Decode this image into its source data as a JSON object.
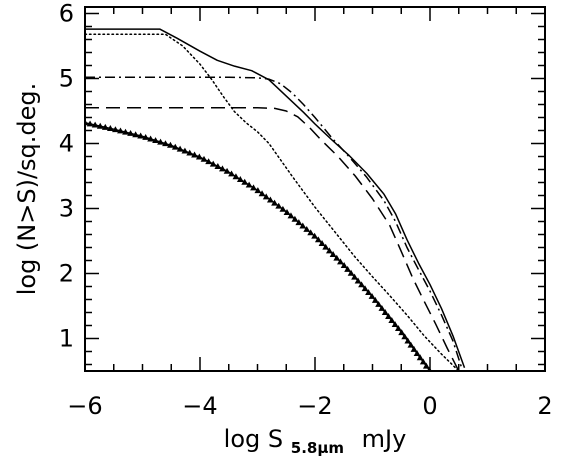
{
  "chart_data": {
    "type": "line",
    "xlabel": {
      "main": "log S",
      "subscript": "5.8μm",
      "unit": "mJy"
    },
    "ylabel": "log (N>S)/sq.deg.",
    "xlim": [
      -6.0,
      2.0
    ],
    "ylim": [
      0.5,
      6.1
    ],
    "xticks": [
      -6,
      -4,
      -2,
      0,
      2
    ],
    "xtick_labels": [
      "−6",
      "−4",
      "−2",
      "0",
      "2"
    ],
    "yticks": [
      1,
      2,
      3,
      4,
      5,
      6
    ],
    "ytick_labels": [
      "1",
      "2",
      "3",
      "4",
      "5",
      "6"
    ],
    "grid": false,
    "legend": "none",
    "series": [
      {
        "style": "solid",
        "color": "#000000",
        "x": [
          -6.0,
          -5.0,
          -4.7,
          -4.4,
          -4.0,
          -3.7,
          -3.4,
          -3.1,
          -2.8,
          -2.5,
          -2.2,
          -2.0,
          -1.7,
          -1.4,
          -1.1,
          -0.8,
          -0.6,
          -0.4,
          -0.2,
          0.0,
          0.2,
          0.4,
          0.6
        ],
        "y": [
          5.76,
          5.76,
          5.76,
          5.62,
          5.42,
          5.28,
          5.19,
          5.12,
          4.98,
          4.73,
          4.48,
          4.3,
          4.05,
          3.81,
          3.54,
          3.22,
          2.92,
          2.52,
          2.16,
          1.83,
          1.46,
          1.04,
          0.55
        ]
      },
      {
        "style": "dotted",
        "color": "#000000",
        "x": [
          -6.0,
          -5.0,
          -4.6,
          -4.3,
          -4.0,
          -3.8,
          -3.6,
          -3.4,
          -3.2,
          -3.0,
          -2.8,
          -2.6,
          -2.4,
          -2.2,
          -2.0,
          -1.8,
          -1.6,
          -1.3,
          -1.0,
          -0.7,
          -0.4,
          -0.1,
          0.2,
          0.5
        ],
        "y": [
          5.68,
          5.68,
          5.68,
          5.5,
          5.22,
          4.99,
          4.73,
          4.49,
          4.32,
          4.18,
          4.0,
          3.75,
          3.5,
          3.26,
          3.02,
          2.8,
          2.58,
          2.25,
          1.95,
          1.66,
          1.36,
          1.04,
          0.76,
          0.5
        ]
      },
      {
        "style": "dash-dot",
        "color": "#000000",
        "x": [
          -6.0,
          -4.0,
          -3.5,
          -3.0,
          -2.8,
          -2.6,
          -2.4,
          -2.2,
          -2.0,
          -1.7,
          -1.4,
          -1.1,
          -0.8,
          -0.6,
          -0.4,
          -0.2,
          0.0,
          0.2,
          0.4,
          0.55
        ],
        "y": [
          5.02,
          5.02,
          5.02,
          5.01,
          4.99,
          4.92,
          4.78,
          4.6,
          4.4,
          4.08,
          3.79,
          3.48,
          3.12,
          2.8,
          2.4,
          2.06,
          1.73,
          1.36,
          0.96,
          0.55
        ]
      },
      {
        "style": "dashed",
        "color": "#000000",
        "x": [
          -6.0,
          -4.0,
          -3.0,
          -2.7,
          -2.5,
          -2.3,
          -2.1,
          -1.9,
          -1.6,
          -1.3,
          -1.0,
          -0.7,
          -0.5,
          -0.3,
          -0.1,
          0.1,
          0.3,
          0.5
        ],
        "y": [
          4.55,
          4.55,
          4.55,
          4.54,
          4.5,
          4.41,
          4.25,
          4.06,
          3.8,
          3.5,
          3.15,
          2.74,
          2.34,
          1.93,
          1.57,
          1.22,
          0.85,
          0.5
        ]
      },
      {
        "style": "solid-with-triangles",
        "color": "#000000",
        "x": [
          -6.0,
          -5.5,
          -5.0,
          -4.5,
          -4.0,
          -3.5,
          -3.0,
          -2.5,
          -2.0,
          -1.5,
          -1.0,
          -0.5,
          -0.2,
          0.0
        ],
        "y": [
          4.32,
          4.22,
          4.11,
          3.97,
          3.79,
          3.56,
          3.28,
          2.95,
          2.57,
          2.13,
          1.64,
          1.1,
          0.74,
          0.5
        ]
      }
    ]
  }
}
